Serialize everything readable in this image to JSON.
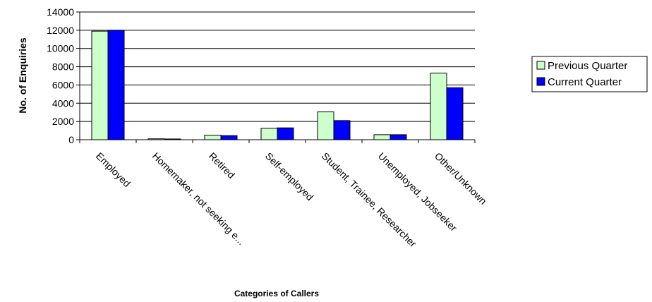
{
  "chart_data": {
    "type": "bar",
    "title": "",
    "xlabel": "Categories of Callers",
    "ylabel": "No. of Enquiries",
    "ylim": [
      0,
      14000
    ],
    "yticks": [
      0,
      2000,
      4000,
      6000,
      8000,
      10000,
      12000,
      14000
    ],
    "grid": true,
    "legend_position": "right",
    "categories": [
      "Employed",
      "Homemaker, not seeking e...",
      "Retired",
      "Self-employed",
      "Student, Trainee, Researcher",
      "Unemployed, Jobseeker",
      "Other/Unknown"
    ],
    "series": [
      {
        "name": "Previous Quarter",
        "color": "#ccffcc",
        "values": [
          11900,
          100,
          500,
          1250,
          3050,
          550,
          7300
        ]
      },
      {
        "name": "Current Quarter",
        "color": "#0000ff",
        "values": [
          12000,
          80,
          450,
          1300,
          2100,
          550,
          5700
        ]
      }
    ]
  }
}
